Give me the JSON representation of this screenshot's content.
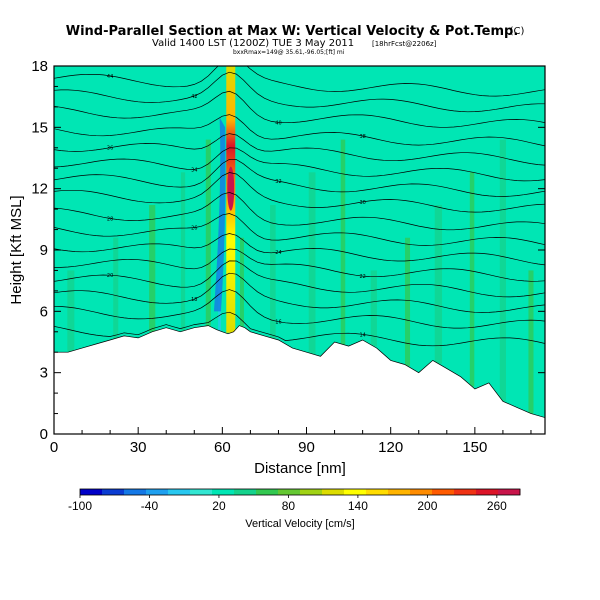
{
  "chart_data": {
    "type": "heatmap",
    "title": "Wind-Parallel Section at Max W: Vertical Velocity & Pot.Temp.",
    "copyright": "(C)",
    "subtitle": "Valid 1400 LST (1200Z) TUE 3 May 2011",
    "forecast_tag": "[18hrFcst@2206z]",
    "info_line": "bxxRmax=149@ 35.61,-96.05;[ft] mi",
    "xlabel": "Distance [nm]",
    "ylabel": "Height [Kft MSL]",
    "xlim": [
      0,
      175
    ],
    "ylim": [
      0,
      18
    ],
    "xticks": [
      0,
      30,
      60,
      90,
      120,
      150
    ],
    "yticks": [
      0,
      3,
      6,
      9,
      12,
      15,
      18
    ],
    "colorbar": {
      "label": "Vertical Velocity [cm/s]",
      "min": -100,
      "max": 280,
      "tick_values": [
        -100,
        -40,
        20,
        80,
        140,
        200,
        260
      ],
      "colors": [
        "#0000c8",
        "#0a3cd2",
        "#1478e6",
        "#1ea0f0",
        "#28c8f0",
        "#32e6d2",
        "#00e6b4",
        "#14d28c",
        "#32c850",
        "#64c832",
        "#a0d214",
        "#dcdc00",
        "#ffff00",
        "#ffdc00",
        "#ffb400",
        "#ff8c00",
        "#ff5a00",
        "#f03214",
        "#dc1428",
        "#c8144a"
      ]
    },
    "fill": {
      "background_color": "#00e6b4",
      "updraft_core_x": 63,
      "terrain_color": "#ffffff"
    },
    "terrain": {
      "x": [
        0,
        5,
        10,
        15,
        20,
        25,
        30,
        35,
        40,
        45,
        50,
        55,
        58,
        60,
        62,
        64,
        66,
        68,
        70,
        75,
        80,
        85,
        90,
        95,
        100,
        105,
        110,
        115,
        120,
        125,
        130,
        135,
        140,
        145,
        150,
        155,
        160,
        165,
        170,
        175
      ],
      "height": [
        4,
        4,
        4.2,
        4.4,
        4.6,
        4.8,
        4.7,
        5,
        5.2,
        5,
        5.2,
        5.3,
        5.1,
        5,
        4.9,
        5,
        5.3,
        5.2,
        5,
        4.8,
        4.6,
        4.2,
        4,
        3.8,
        4.5,
        4.3,
        4.6,
        4.2,
        3.6,
        3.4,
        3,
        3.6,
        3.2,
        2.8,
        2.2,
        2.5,
        1.6,
        1.3,
        1,
        0.8
      ]
    },
    "isentropes": [
      {
        "label": "44",
        "y_left": 17.4
      },
      {
        "label": "42",
        "y_left": 16.6
      },
      {
        "label": "40",
        "y_left": 15.8
      },
      {
        "label": "38",
        "y_left": 14.9
      },
      {
        "label": "36",
        "y_left": 14.1
      },
      {
        "label": "34",
        "y_left": 13.3
      },
      {
        "label": "32",
        "y_left": 12.5
      },
      {
        "label": "30",
        "y_left": 11.7
      },
      {
        "label": "28",
        "y_left": 10.8
      },
      {
        "label": "26",
        "y_left": 10.0
      },
      {
        "label": "24",
        "y_left": 9.2
      },
      {
        "label": "22",
        "y_left": 8.4
      },
      {
        "label": "20",
        "y_left": 7.6
      },
      {
        "label": "18",
        "y_left": 6.8
      },
      {
        "label": "16",
        "y_left": 6.0
      },
      {
        "label": "14",
        "y_left": 5.1
      }
    ]
  }
}
